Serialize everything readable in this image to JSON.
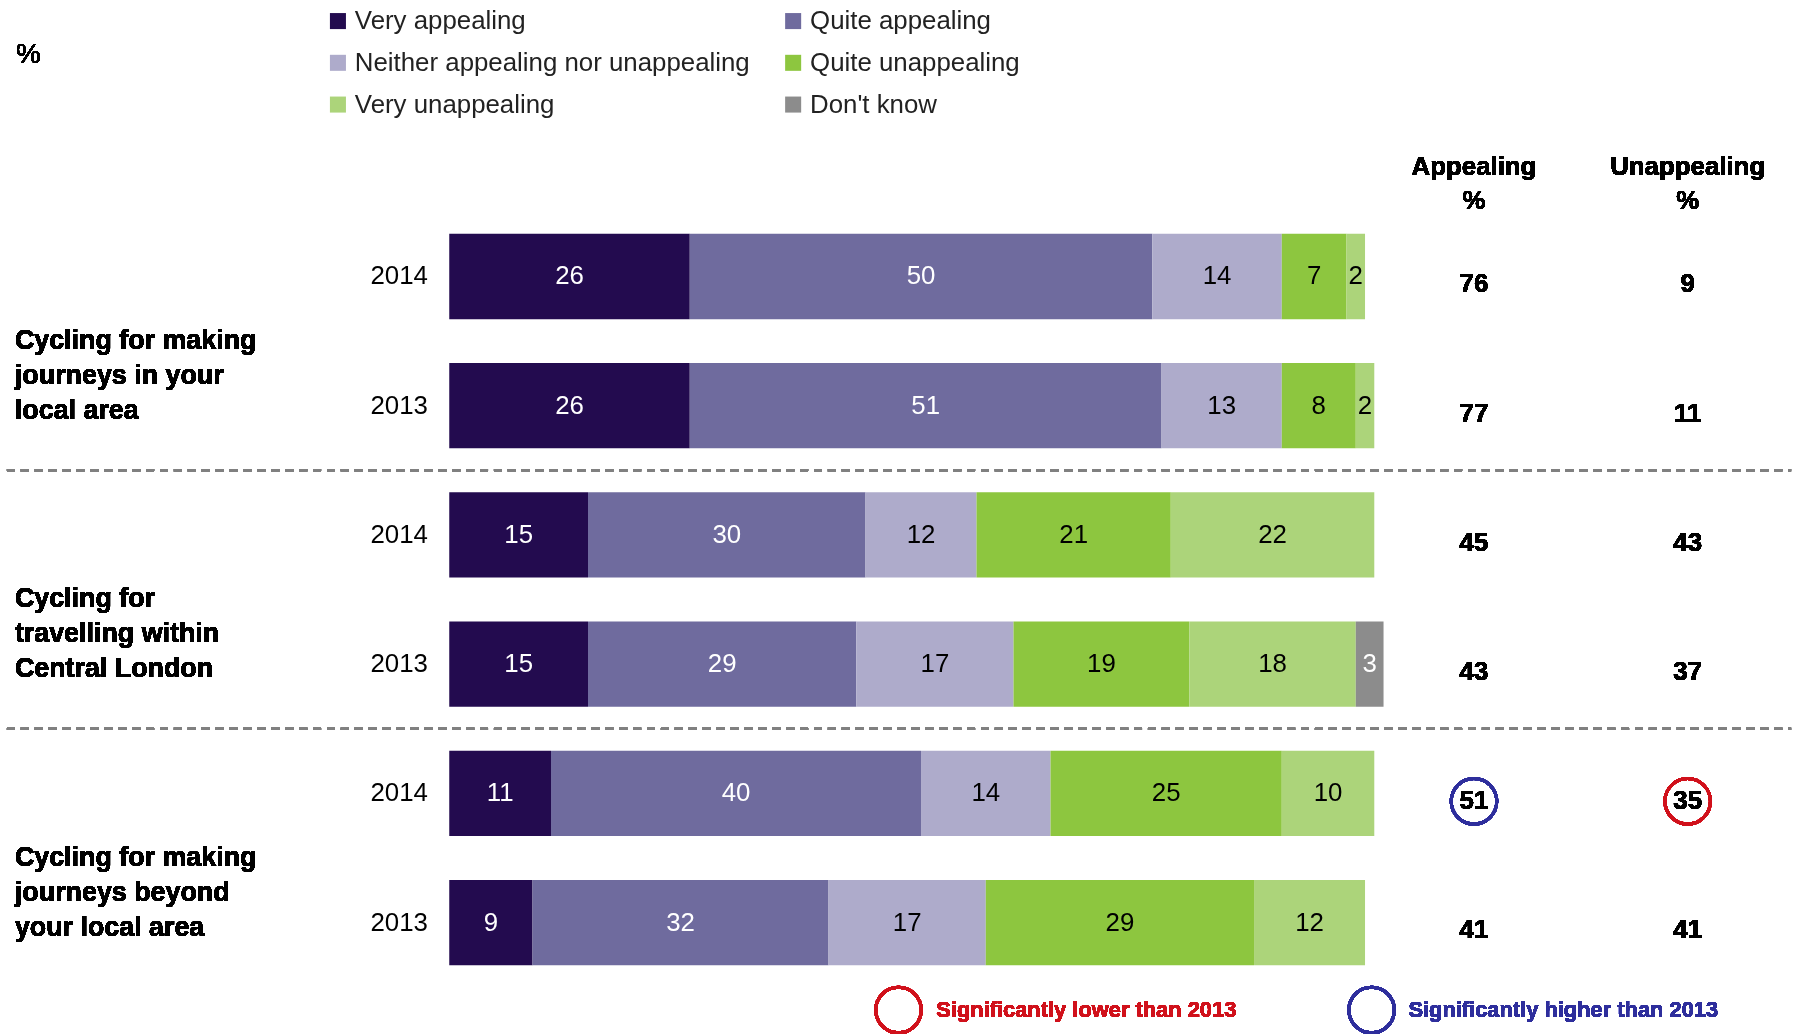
{
  "chart_data": {
    "type": "bar",
    "orientation": "horizontal",
    "stacked": true,
    "data_labels": true,
    "legend": "top",
    "tick_labels": "y",
    "categories": [
      "2014",
      "2013",
      "2014",
      "2013",
      "2014",
      "2013"
    ],
    "xlim": [
      0,
      101
    ],
    "series": [
      {
        "name": "Very appealing",
        "color": "#230b4f",
        "values": [
          26,
          26,
          15,
          15,
          11,
          9
        ]
      },
      {
        "name": "Quite appealing",
        "color": "#6f6b9e",
        "values": [
          50,
          51,
          30,
          29,
          40,
          32
        ]
      },
      {
        "name": "Neither appealing nor unappealing",
        "color": "#aeabcb",
        "values": [
          14,
          13,
          12,
          17,
          14,
          17
        ]
      },
      {
        "name": "Quite unappealing",
        "color": "#8dc63f",
        "values": [
          7,
          8,
          21,
          19,
          25,
          29
        ]
      },
      {
        "name": "Very unappealing",
        "color": "#acd47a",
        "values": [
          2,
          2,
          22,
          18,
          10,
          12
        ]
      },
      {
        "name": "Don't know",
        "color": "#8c8c8c",
        "values": [
          null,
          null,
          null,
          3,
          null,
          null
        ]
      }
    ],
    "annotations": [
      "%",
      "Cycling for making journeys in your local area",
      "Cycling for travelling within Central London",
      "Cycling for making journeys beyond your local area",
      "Appealing %",
      "Unappealing %",
      "76",
      "9",
      "77",
      "11",
      "45",
      "43",
      "43",
      "37",
      "51",
      "35",
      "41",
      "41",
      "Significantly lower than 2013",
      "Significantly higher than 2013"
    ]
  }
}
